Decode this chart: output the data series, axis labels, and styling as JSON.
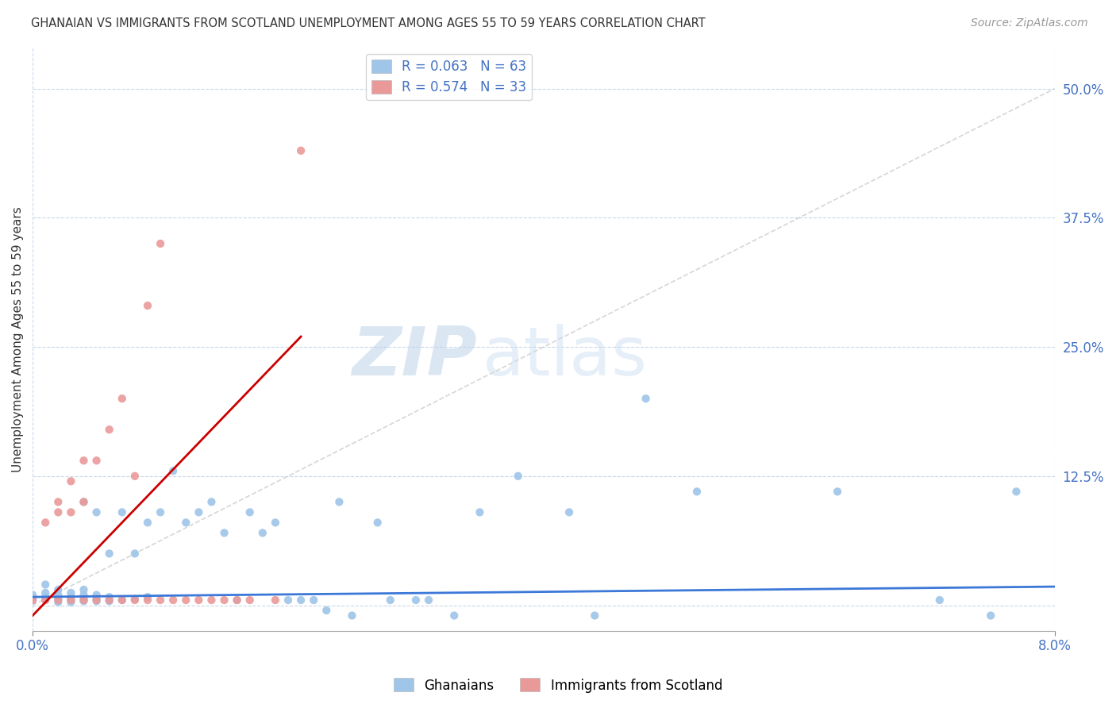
{
  "title": "GHANAIAN VS IMMIGRANTS FROM SCOTLAND UNEMPLOYMENT AMONG AGES 55 TO 59 YEARS CORRELATION CHART",
  "source": "Source: ZipAtlas.com",
  "ylabel": "Unemployment Among Ages 55 to 59 years",
  "xlim": [
    0.0,
    0.08
  ],
  "ylim": [
    -0.025,
    0.54
  ],
  "ytick_vals": [
    0.0,
    0.125,
    0.25,
    0.375,
    0.5
  ],
  "ytick_labels": [
    "",
    "12.5%",
    "25.0%",
    "37.5%",
    "50.0%"
  ],
  "xtick_vals": [
    0.0,
    0.08
  ],
  "xtick_labels": [
    "0.0%",
    "8.0%"
  ],
  "legend_r1": "R = 0.063",
  "legend_n1": "N = 63",
  "legend_r2": "R = 0.574",
  "legend_n2": "N = 33",
  "color_blue": "#9fc5e8",
  "color_pink": "#ea9999",
  "color_blue_line": "#3c78d8",
  "color_pink_line": "#cc0000",
  "color_diag": "#cccccc",
  "watermark_zip": "ZIP",
  "watermark_atlas": "atlas",
  "gh_x": [
    0.0,
    0.0,
    0.001,
    0.001,
    0.001,
    0.001,
    0.002,
    0.002,
    0.002,
    0.002,
    0.003,
    0.003,
    0.003,
    0.003,
    0.004,
    0.004,
    0.004,
    0.004,
    0.004,
    0.005,
    0.005,
    0.005,
    0.005,
    0.006,
    0.006,
    0.006,
    0.007,
    0.007,
    0.008,
    0.008,
    0.009,
    0.009,
    0.01,
    0.011,
    0.012,
    0.013,
    0.014,
    0.015,
    0.016,
    0.017,
    0.018,
    0.019,
    0.02,
    0.021,
    0.022,
    0.023,
    0.024,
    0.025,
    0.027,
    0.028,
    0.03,
    0.031,
    0.033,
    0.035,
    0.038,
    0.042,
    0.044,
    0.048,
    0.052,
    0.063,
    0.071,
    0.075,
    0.077
  ],
  "gh_y": [
    0.005,
    0.01,
    0.005,
    0.008,
    0.012,
    0.02,
    0.003,
    0.006,
    0.01,
    0.015,
    0.003,
    0.005,
    0.008,
    0.012,
    0.004,
    0.006,
    0.01,
    0.015,
    0.1,
    0.004,
    0.006,
    0.01,
    0.09,
    0.004,
    0.008,
    0.05,
    0.005,
    0.09,
    0.006,
    0.05,
    0.008,
    0.08,
    0.09,
    0.13,
    0.08,
    0.09,
    0.1,
    0.07,
    0.005,
    0.09,
    0.07,
    0.08,
    0.005,
    0.005,
    0.005,
    -0.005,
    0.1,
    -0.01,
    0.08,
    0.005,
    0.005,
    0.005,
    -0.01,
    0.09,
    0.125,
    0.09,
    -0.01,
    0.2,
    0.11,
    0.11,
    0.005,
    -0.01,
    0.11
  ],
  "sc_x": [
    0.0,
    0.001,
    0.001,
    0.002,
    0.002,
    0.002,
    0.003,
    0.003,
    0.003,
    0.004,
    0.004,
    0.004,
    0.005,
    0.005,
    0.006,
    0.006,
    0.007,
    0.007,
    0.008,
    0.008,
    0.009,
    0.009,
    0.01,
    0.01,
    0.011,
    0.012,
    0.013,
    0.014,
    0.015,
    0.016,
    0.017,
    0.019,
    0.021
  ],
  "sc_y": [
    0.005,
    0.005,
    0.08,
    0.005,
    0.09,
    0.1,
    0.005,
    0.09,
    0.12,
    0.005,
    0.1,
    0.14,
    0.005,
    0.14,
    0.005,
    0.17,
    0.005,
    0.2,
    0.005,
    0.125,
    0.005,
    0.29,
    0.005,
    0.35,
    0.005,
    0.005,
    0.005,
    0.005,
    0.005,
    0.005,
    0.005,
    0.005,
    0.44
  ],
  "blue_line_x": [
    0.0,
    0.08
  ],
  "blue_line_y": [
    0.008,
    0.018
  ],
  "pink_line_x": [
    0.0,
    0.021
  ],
  "pink_line_y": [
    -0.01,
    0.26
  ]
}
